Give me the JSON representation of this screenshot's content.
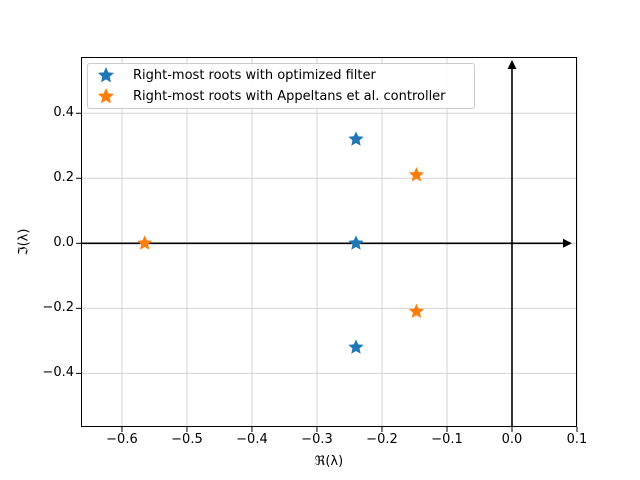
{
  "figure": {
    "background": "#ffffff"
  },
  "chart_data": {
    "type": "scatter",
    "xlabel": "ℜ(λ)",
    "ylabel": "ℑ(λ)",
    "xlim": [
      -0.663,
      0.1
    ],
    "ylim": [
      -0.565,
      0.573
    ],
    "grid": true,
    "grid_color": "#d3d3d3",
    "legend_position": "upper left",
    "xticks": {
      "values": [
        -0.6,
        -0.5,
        -0.4,
        -0.3,
        -0.2,
        -0.1,
        0.0,
        0.1
      ],
      "labels": [
        "−0.6",
        "−0.5",
        "−0.4",
        "−0.3",
        "−0.2",
        "−0.1",
        "0.0",
        "0.1"
      ]
    },
    "yticks": {
      "values": [
        -0.4,
        -0.2,
        0.0,
        0.2,
        0.4
      ],
      "labels": [
        "−0.4",
        "−0.2",
        "0.0",
        "0.2",
        "0.4"
      ]
    },
    "axis_arrows": {
      "horizontal_at_y": 0,
      "vertical_at_x": 0
    },
    "series": [
      {
        "name": "Right-most roots with optimized filter",
        "color": "#1f77b4",
        "marker": "star",
        "points": [
          {
            "x": -0.24,
            "y": 0.32
          },
          {
            "x": -0.24,
            "y": 0.0
          },
          {
            "x": -0.24,
            "y": -0.32
          }
        ]
      },
      {
        "name": "Right-most roots with Appeltans et al. controller",
        "color": "#ff7f0e",
        "marker": "star",
        "points": [
          {
            "x": -0.565,
            "y": 0.0
          },
          {
            "x": -0.147,
            "y": 0.21
          },
          {
            "x": -0.147,
            "y": -0.21
          }
        ]
      }
    ]
  }
}
